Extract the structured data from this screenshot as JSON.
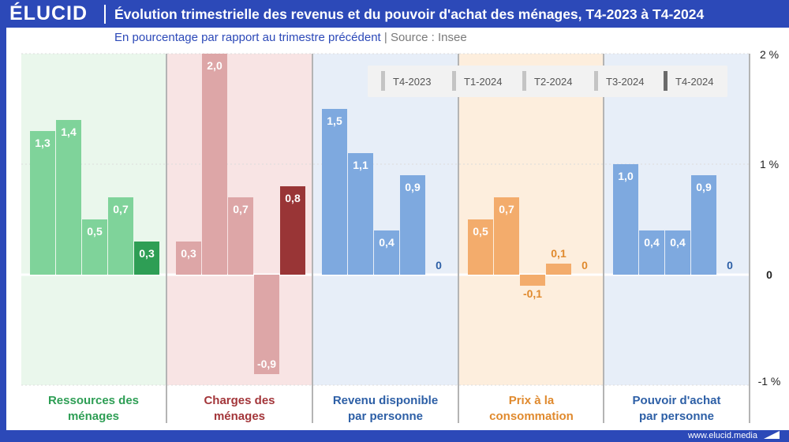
{
  "brand": {
    "logo": "ÉLUCID",
    "url": "www.elucid.media"
  },
  "header": {
    "title": "Évolution trimestrielle des revenus et du pouvoir d'achat des ménages, T4-2023 à T4-2024",
    "subtitle": "En pourcentage par rapport au trimestre précédent",
    "source": "|  Source : Insee"
  },
  "chart_data": {
    "type": "bar",
    "title": "Évolution trimestrielle des revenus et du pouvoir d'achat des ménages, T4-2023 à T4-2024",
    "ylabel": "",
    "ylim": [
      -1,
      2
    ],
    "yticks": [
      {
        "value": 2,
        "label": "2 %"
      },
      {
        "value": 1,
        "label": "1 %"
      },
      {
        "value": 0,
        "label": "0"
      },
      {
        "value": -1,
        "label": "-1 %"
      }
    ],
    "grid": true,
    "legend_position": "top-right",
    "series_names": [
      "T4-2023",
      "T1-2024",
      "T2-2024",
      "T3-2024",
      "T4-2024"
    ],
    "categories": [
      {
        "name": "Ressources des ménages",
        "values": [
          1.3,
          1.4,
          0.5,
          0.7,
          0.3
        ],
        "labels": [
          "1,3",
          "1,4",
          "0,5",
          "0,7",
          "0,3"
        ],
        "background": "#eaf7ec",
        "bar": "#7fd39a",
        "last_bar": "#2e9e55",
        "text": "#2e9e55"
      },
      {
        "name": "Charges des ménages",
        "values": [
          0.3,
          2.0,
          0.7,
          -0.9,
          0.8
        ],
        "labels": [
          "0,3",
          "2,0",
          "0,7",
          "-0,9",
          "0,8"
        ],
        "background": "#f8e4e4",
        "bar": "#dda6a7",
        "last_bar": "#993536",
        "text": "#a3363a"
      },
      {
        "name": "Revenu disponible par personne",
        "values": [
          1.5,
          1.1,
          0.4,
          0.9,
          0
        ],
        "labels": [
          "1,5",
          "1,1",
          "0,4",
          "0,9",
          "0"
        ],
        "background": "#e7eef8",
        "bar": "#7ea9df",
        "last_bar": "#2d64b3",
        "text": "#2d5fa6"
      },
      {
        "name": "Prix à la consommation",
        "values": [
          0.5,
          0.7,
          -0.1,
          0.1,
          0
        ],
        "labels": [
          "0,5",
          "0,7",
          "-0,1",
          "0,1",
          "0"
        ],
        "background": "#fdeedd",
        "bar": "#f3ac6c",
        "last_bar": "#e08a2e",
        "text": "#e08a2e"
      },
      {
        "name": "Pouvoir d'achat par personne",
        "values": [
          1.0,
          0.4,
          0.4,
          0.9,
          0
        ],
        "labels": [
          "1,0",
          "0,4",
          "0,4",
          "0,9",
          "0"
        ],
        "background": "#e7eef8",
        "bar": "#7ea9df",
        "last_bar": "#2d64b3",
        "text": "#2d5fa6"
      }
    ],
    "colors": {
      "legend_light": "#c4c4c4",
      "legend_dark": "#6b6b6b",
      "separator": "#b4b4b4"
    }
  }
}
